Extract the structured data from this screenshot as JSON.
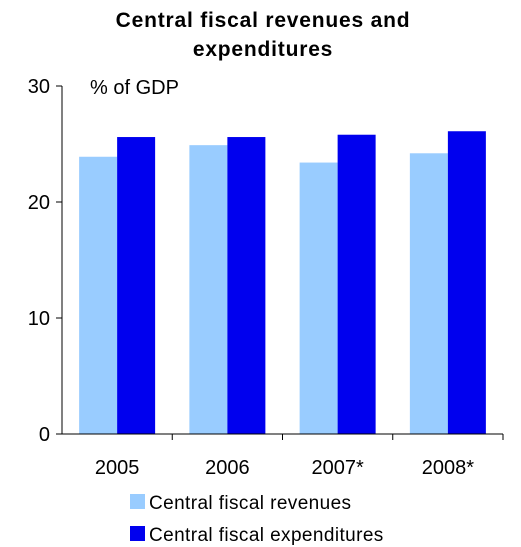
{
  "chart_data": {
    "type": "bar",
    "title_lines": [
      "Central fiscal revenues and",
      "expenditures"
    ],
    "unit_label": "% of GDP",
    "categories": [
      "2005",
      "2006",
      "2007*",
      "2008*"
    ],
    "series": [
      {
        "name": "Central fiscal revenues",
        "color": "#99ccff",
        "values": [
          23.9,
          24.9,
          23.4,
          24.2
        ]
      },
      {
        "name": "Central fiscal expenditures",
        "color": "#0000ee",
        "values": [
          25.6,
          25.6,
          25.8,
          26.1
        ]
      }
    ],
    "ylim": [
      0,
      30
    ],
    "yticks": [
      "0",
      "10",
      "20",
      "30"
    ],
    "grid": false,
    "legend_position": "bottom"
  }
}
